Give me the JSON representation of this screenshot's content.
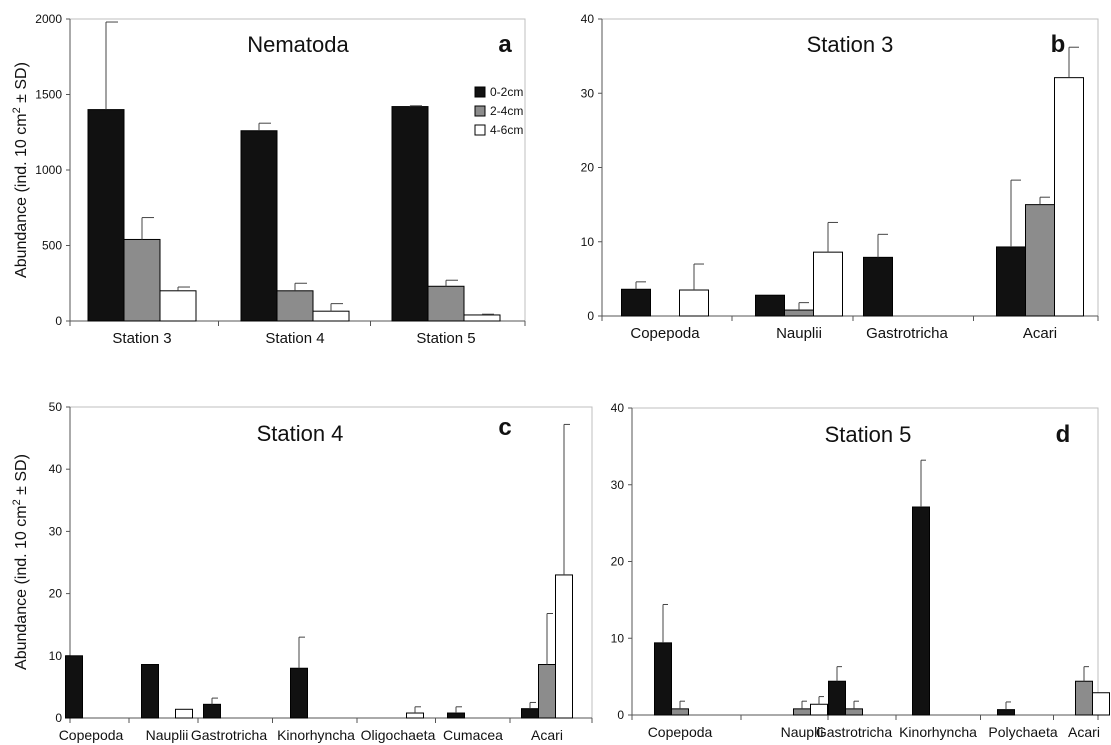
{
  "ylabel_main": "Abundance (ind. 10 cm",
  "ylabel_sup": "2",
  "ylabel_tail": " ± SD)",
  "legend": [
    {
      "label": "0-2cm",
      "color": "#111111"
    },
    {
      "label": "2-4cm",
      "color": "#8c8c8c"
    },
    {
      "label": "4-6cm",
      "color": "#ffffff"
    }
  ],
  "chart_data": [
    {
      "panel": "a",
      "type": "bar",
      "title": "Nematoda",
      "letter": "a",
      "ylim": [
        0,
        2000
      ],
      "yticks": [
        0,
        500,
        1000,
        1500,
        2000
      ],
      "categories": [
        "Station 3",
        "Station 4",
        "Station 5"
      ],
      "series": [
        {
          "name": "0-2cm",
          "color": "#111111",
          "values": [
            1400,
            1260,
            1420
          ],
          "errors": [
            580,
            50,
            5
          ]
        },
        {
          "name": "2-4cm",
          "color": "#8c8c8c",
          "values": [
            540,
            200,
            230
          ],
          "errors": [
            145,
            50,
            40
          ]
        },
        {
          "name": "4-6cm",
          "color": "#ffffff",
          "values": [
            200,
            65,
            40
          ],
          "errors": [
            25,
            50,
            5
          ]
        }
      ],
      "has_ylabel": true,
      "has_legend": true
    },
    {
      "panel": "b",
      "type": "bar",
      "title": "Station 3",
      "letter": "b",
      "ylim": [
        0,
        40
      ],
      "yticks": [
        0,
        10,
        20,
        30,
        40
      ],
      "categories": [
        "Copepoda",
        "Nauplii",
        "Gastrotricha",
        "Acari"
      ],
      "series": [
        {
          "name": "0-2cm",
          "color": "#111111",
          "values": [
            3.6,
            2.8,
            7.9,
            9.3
          ],
          "errors": [
            1.0,
            0,
            3.1,
            9.0
          ]
        },
        {
          "name": "2-4cm",
          "color": "#8c8c8c",
          "values": [
            0,
            0.8,
            0,
            15.0
          ],
          "errors": [
            0,
            1.0,
            0,
            1.0
          ]
        },
        {
          "name": "4-6cm",
          "color": "#ffffff",
          "values": [
            3.5,
            8.6,
            0,
            32.1
          ],
          "errors": [
            3.5,
            4.0,
            0,
            4.1
          ]
        }
      ],
      "has_ylabel": false,
      "has_legend": false
    },
    {
      "panel": "c",
      "type": "bar",
      "title": "Station 4",
      "letter": "c",
      "ylim": [
        0,
        50
      ],
      "yticks": [
        0,
        10,
        20,
        30,
        40,
        50
      ],
      "categories": [
        "Copepoda",
        "Nauplii",
        "Gastrotricha",
        "Kinorhyncha",
        "Oligochaeta",
        "Cumacea",
        "Acari"
      ],
      "series": [
        {
          "name": "0-2cm",
          "color": "#111111",
          "values": [
            10,
            8.6,
            2.2,
            8.0,
            0,
            0.8,
            1.5
          ],
          "errors": [
            0,
            0,
            1.0,
            5.0,
            0,
            1.0,
            1.0
          ]
        },
        {
          "name": "2-4cm",
          "color": "#8c8c8c",
          "values": [
            0,
            0,
            0,
            0,
            0,
            0,
            8.6
          ],
          "errors": [
            0,
            0,
            0,
            0,
            0,
            0,
            8.2
          ]
        },
        {
          "name": "4-6cm",
          "color": "#ffffff",
          "values": [
            0,
            1.4,
            0,
            0,
            0.8,
            0,
            23.0
          ],
          "errors": [
            0,
            0,
            0,
            0,
            1.0,
            0,
            24.2
          ]
        }
      ],
      "has_ylabel": true,
      "has_legend": false
    },
    {
      "panel": "d",
      "type": "bar",
      "title": "Station 5",
      "letter": "d",
      "ylim": [
        0,
        40
      ],
      "yticks": [
        0,
        10,
        20,
        30,
        40
      ],
      "categories": [
        "Copepoda",
        "Nauplii",
        "Gastrotricha",
        "Kinorhyncha",
        "Polychaeta",
        "Acari"
      ],
      "series": [
        {
          "name": "0-2cm",
          "color": "#111111",
          "values": [
            9.4,
            0,
            4.4,
            27.1,
            0.7,
            0
          ],
          "errors": [
            5.0,
            0,
            1.9,
            6.1,
            1.0,
            0
          ]
        },
        {
          "name": "2-4cm",
          "color": "#8c8c8c",
          "values": [
            0.8,
            0.8,
            0.8,
            0,
            0,
            4.4
          ],
          "errors": [
            1.0,
            1.0,
            1.0,
            0,
            0,
            1.9
          ]
        },
        {
          "name": "4-6cm",
          "color": "#ffffff",
          "values": [
            0,
            1.4,
            0,
            0,
            0,
            2.9
          ],
          "errors": [
            0,
            1.0,
            0,
            0,
            0,
            0
          ]
        }
      ],
      "has_ylabel": false,
      "has_legend": false
    }
  ]
}
